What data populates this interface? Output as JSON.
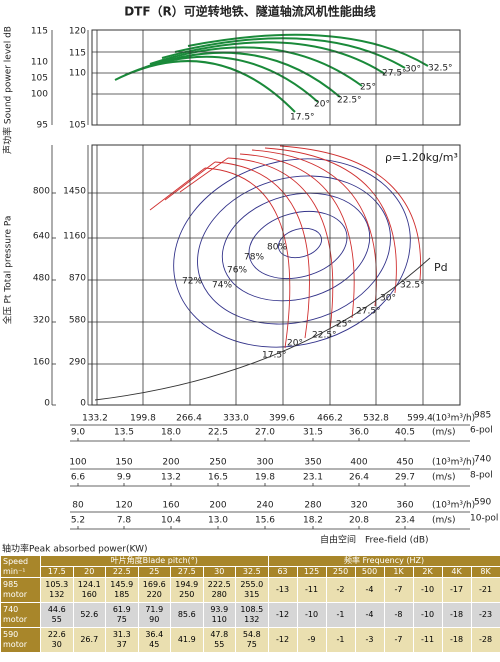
{
  "title": "DTF（R）可逆转地铁、隧道轴流风机性能曲线",
  "sound": {
    "axis_label": "声功率 Sound power level dB",
    "scale_a": [
      "115",
      "110",
      "105",
      "100",
      "95"
    ],
    "scale_b": [
      "120",
      "115",
      "110",
      "105"
    ],
    "blade_labels": [
      "17.5°",
      "20°",
      "22.5°",
      "25°",
      "27.5°",
      "30°",
      "32.5°"
    ]
  },
  "pressure": {
    "axis_label": "全压 Pt Total pressure Pa",
    "scale_a": [
      "800",
      "640",
      "480",
      "320",
      "160",
      "0"
    ],
    "scale_b": [
      "1450",
      "1160",
      "870",
      "580",
      "290",
      "0"
    ],
    "density": "ρ=1.20kg/m³",
    "efficiency_labels": [
      "80%",
      "78%",
      "76%",
      "74%",
      "72%"
    ],
    "blade_labels": [
      "17.5°",
      "20°",
      "22.5°",
      "25°",
      "27.5°",
      "30°",
      "32.5°"
    ],
    "pd": "Pd"
  },
  "speeds": [
    {
      "flow": [
        "133.2",
        "199.8",
        "266.4",
        "333.0",
        "399.6",
        "466.2",
        "532.8",
        "599.4"
      ],
      "flow_unit": "(10³m³/h)",
      "speed": "985",
      "velocity": [
        "9.0",
        "13.5",
        "18.0",
        "22.5",
        "27.0",
        "31.5",
        "36.0",
        "40.5"
      ],
      "velocity_unit": "(m/s)",
      "poles": "6-pol"
    },
    {
      "flow": [
        "100",
        "150",
        "200",
        "250",
        "300",
        "350",
        "400",
        "450"
      ],
      "flow_unit": "(10³m³/h)",
      "speed": "740",
      "velocity": [
        "6.6",
        "9.9",
        "13.2",
        "16.5",
        "19.8",
        "23.1",
        "26.4",
        "29.7"
      ],
      "velocity_unit": "(m/s)",
      "poles": "8-pol"
    },
    {
      "flow": [
        "80",
        "120",
        "160",
        "200",
        "240",
        "280",
        "320",
        "360"
      ],
      "flow_unit": "(10³m³/h)",
      "speed": "590",
      "velocity": [
        "5.2",
        "7.8",
        "10.4",
        "13.0",
        "15.6",
        "18.2",
        "20.8",
        "23.4"
      ],
      "velocity_unit": "(m/s)",
      "poles": "10-pol"
    }
  ],
  "free_field": "自由空间",
  "free_field_en": "Free-field (dB)",
  "power_label": "轴功率Peak absorbed power(KW)",
  "table": {
    "speed_header": [
      "Speed",
      "min⁻¹"
    ],
    "pitch_header": "叶片角度Blade pitch(°)",
    "pitch": [
      "17.5",
      "20",
      "22.5",
      "25",
      "27.5",
      "30",
      "32.5"
    ],
    "freq_header": "频率    Frequency  (HZ)",
    "freq": [
      "63",
      "125",
      "250",
      "500",
      "1K",
      "2K",
      "4K",
      "8K"
    ],
    "rows": [
      {
        "speed": "985",
        "motor": "motor",
        "power": [
          [
            "105.3",
            "132"
          ],
          [
            "124.1",
            "160"
          ],
          [
            "145.9",
            "185"
          ],
          [
            "169.6",
            "220"
          ],
          [
            "194.9",
            "250"
          ],
          [
            "222.5",
            "280"
          ],
          [
            "255.0",
            "315"
          ]
        ],
        "noise": [
          "-13",
          "-11",
          "-2",
          "-4",
          "-7",
          "-10",
          "-17",
          "-21"
        ]
      },
      {
        "speed": "740",
        "motor": "motor",
        "power": [
          [
            "44.6",
            "55"
          ],
          [
            "52.6"
          ],
          [
            "61.9",
            "75"
          ],
          [
            "71.9",
            "90"
          ],
          [
            "85.6"
          ],
          [
            "93.9",
            "110"
          ],
          [
            "108.5",
            "132"
          ]
        ],
        "noise": [
          "-12",
          "-10",
          "-1",
          "-4",
          "-8",
          "-10",
          "-18",
          "-23"
        ]
      },
      {
        "speed": "590",
        "motor": "motor",
        "power": [
          [
            "22.6",
            "30"
          ],
          [
            "26.7"
          ],
          [
            "31.3",
            "37"
          ],
          [
            "36.4",
            "45"
          ],
          [
            "41.9"
          ],
          [
            "47.8",
            "55"
          ],
          [
            "54.8",
            "75"
          ]
        ],
        "noise": [
          "-12",
          "-9",
          "-1",
          "-3",
          "-7",
          "-11",
          "-18",
          "-28"
        ]
      }
    ]
  }
}
